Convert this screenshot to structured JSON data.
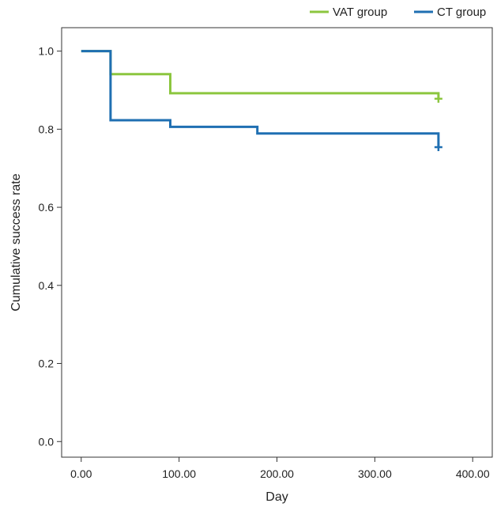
{
  "chart_data": {
    "type": "line",
    "step": true,
    "title": "",
    "xlabel": "Day",
    "ylabel": "Cumulative success rate",
    "xlim": [
      -20,
      420
    ],
    "ylim": [
      -0.04,
      1.06
    ],
    "xticks": [
      0,
      100,
      200,
      300,
      400
    ],
    "xtick_labels": [
      "0.00",
      "100.00",
      "200.00",
      "300.00",
      "400.00"
    ],
    "yticks": [
      0.0,
      0.2,
      0.4,
      0.6,
      0.8,
      1.0
    ],
    "ytick_labels": [
      "0.0",
      "0.2",
      "0.4",
      "0.6",
      "0.8",
      "1.0"
    ],
    "grid": false,
    "legend_position": "top-right",
    "series": [
      {
        "name": "VAT group",
        "color": "#8cc63f",
        "points": [
          [
            0,
            1.0
          ],
          [
            30,
            1.0
          ],
          [
            30,
            0.941
          ],
          [
            91,
            0.941
          ],
          [
            91,
            0.892
          ],
          [
            365,
            0.892
          ],
          [
            365,
            0.878
          ]
        ],
        "censor": [
          [
            365,
            0.878
          ]
        ]
      },
      {
        "name": "CT group",
        "color": "#1f6fb2",
        "points": [
          [
            0,
            1.0
          ],
          [
            30,
            1.0
          ],
          [
            30,
            0.823
          ],
          [
            91,
            0.823
          ],
          [
            91,
            0.806
          ],
          [
            180,
            0.806
          ],
          [
            180,
            0.789
          ],
          [
            365,
            0.789
          ],
          [
            365,
            0.754
          ]
        ],
        "censor": [
          [
            365,
            0.754
          ]
        ]
      }
    ]
  }
}
